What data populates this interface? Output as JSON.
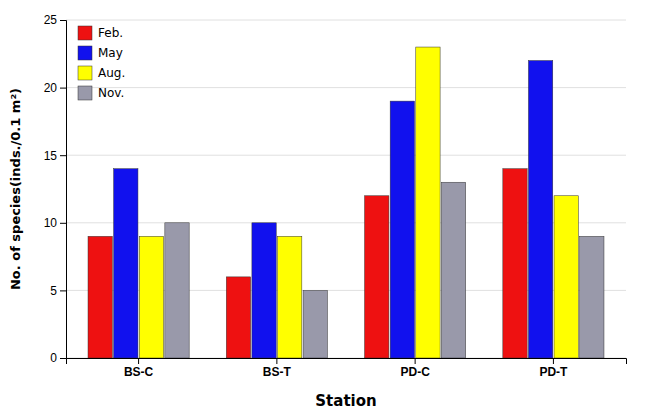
{
  "chart_data": {
    "type": "bar",
    "categories": [
      "BS-C",
      "BS-T",
      "PD-C",
      "PD-T"
    ],
    "series": [
      {
        "name": "Feb.",
        "color": "#EE1111",
        "values": [
          9,
          6,
          12,
          14
        ]
      },
      {
        "name": "May",
        "color": "#1111EE",
        "values": [
          14,
          10,
          19,
          22
        ]
      },
      {
        "name": "Aug.",
        "color": "#FFFF00",
        "values": [
          9,
          9,
          23,
          12
        ]
      },
      {
        "name": "Nov.",
        "color": "#9999AA",
        "values": [
          10,
          5,
          13,
          9
        ]
      }
    ],
    "xlabel": "Station",
    "ylabel": "No. of species(inds./0.1 m²)",
    "ylim": [
      0,
      25
    ],
    "yticks": [
      0,
      5,
      10,
      15,
      20,
      25
    ],
    "grid": true,
    "legend": "upper left"
  }
}
